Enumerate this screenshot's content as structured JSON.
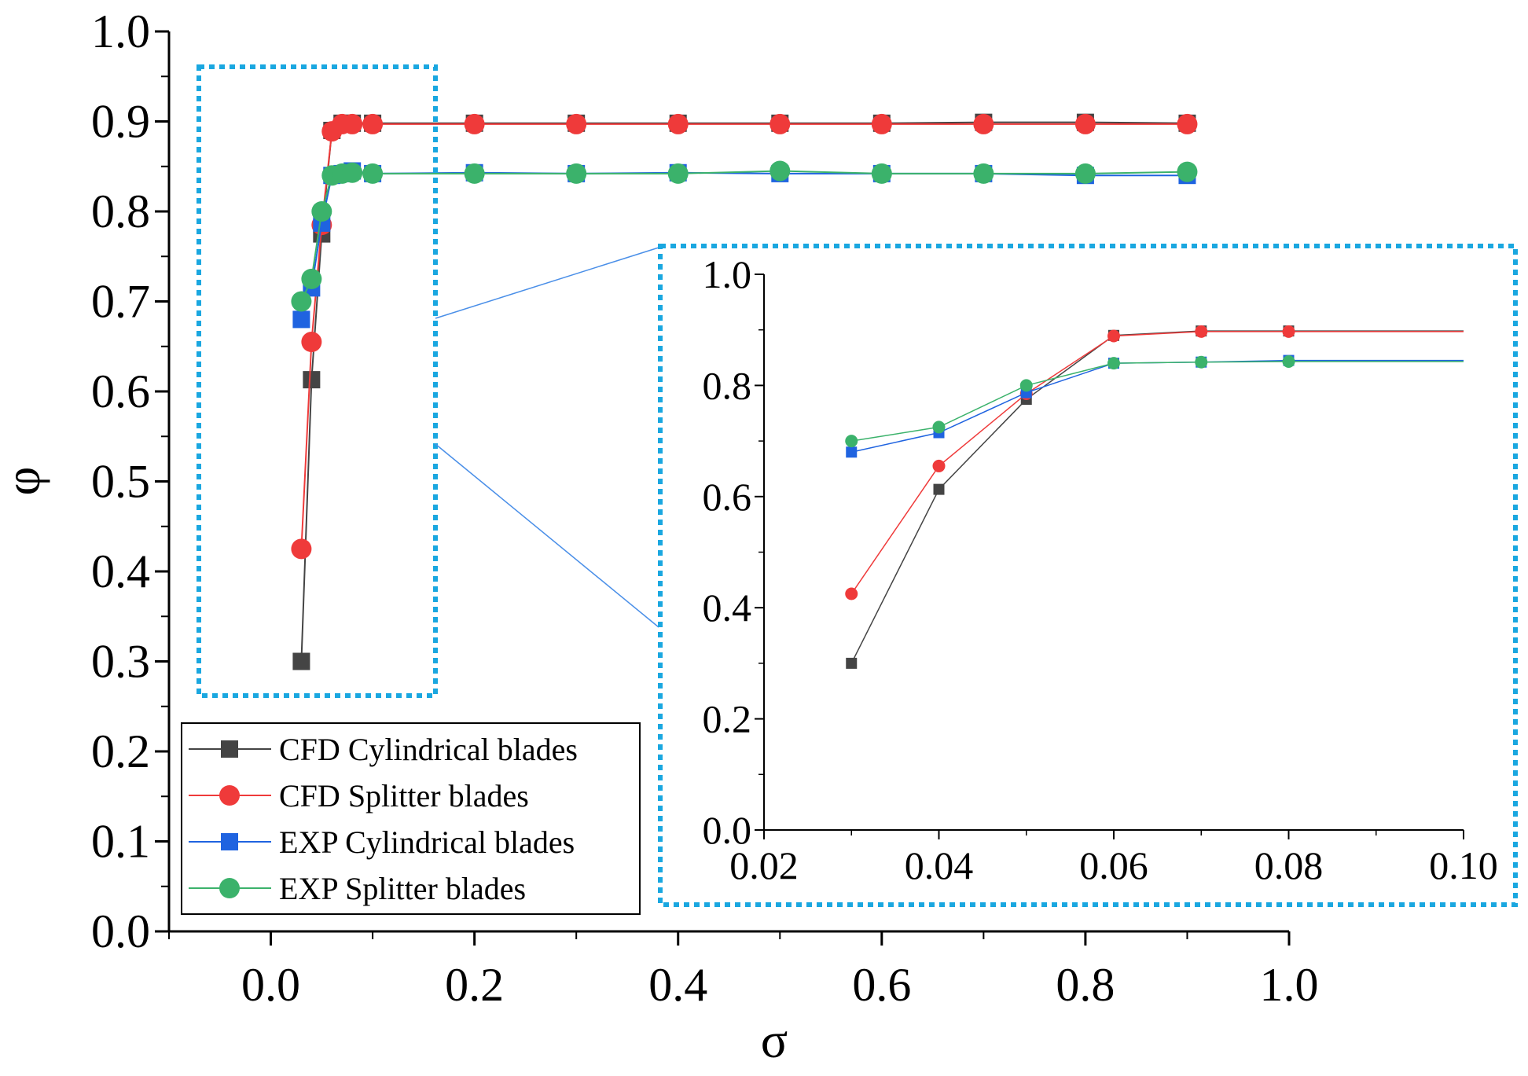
{
  "chart_data": [
    {
      "type": "line",
      "role": "main",
      "xlabel": "σ",
      "ylabel": "φ",
      "xlim": [
        -0.1,
        1.0
      ],
      "ylim": [
        0.0,
        1.0
      ],
      "xticks": [
        0.0,
        0.2,
        0.4,
        0.6,
        0.8,
        1.0
      ],
      "xtick_labels": [
        "0.0",
        "0.2",
        "0.4",
        "0.6",
        "0.8",
        "1.0"
      ],
      "yticks": [
        0.0,
        0.1,
        0.2,
        0.3,
        0.4,
        0.5,
        0.6,
        0.7,
        0.8,
        0.9,
        1.0
      ],
      "ytick_labels": [
        "0.0",
        "0.1",
        "0.2",
        "0.3",
        "0.4",
        "0.5",
        "0.6",
        "0.7",
        "0.8",
        "0.9",
        "1.0"
      ],
      "legend_position": "bottom-left",
      "series": [
        {
          "name": "CFD Cylindrical blades",
          "marker": "square",
          "color": "#444444",
          "points": [
            [
              0.03,
              0.3
            ],
            [
              0.04,
              0.613
            ],
            [
              0.05,
              0.775
            ],
            [
              0.06,
              0.89
            ],
            [
              0.07,
              0.898
            ],
            [
              0.08,
              0.898
            ],
            [
              0.1,
              0.898
            ],
            [
              0.2,
              0.898
            ],
            [
              0.3,
              0.898
            ],
            [
              0.4,
              0.898
            ],
            [
              0.5,
              0.898
            ],
            [
              0.6,
              0.898
            ],
            [
              0.7,
              0.899
            ],
            [
              0.8,
              0.899
            ],
            [
              0.9,
              0.898
            ]
          ]
        },
        {
          "name": "CFD Splitter blades",
          "marker": "circle",
          "color": "#ef3a3a",
          "points": [
            [
              0.03,
              0.425
            ],
            [
              0.04,
              0.655
            ],
            [
              0.05,
              0.785
            ],
            [
              0.06,
              0.889
            ],
            [
              0.07,
              0.897
            ],
            [
              0.08,
              0.897
            ],
            [
              0.1,
              0.897
            ],
            [
              0.2,
              0.897
            ],
            [
              0.3,
              0.897
            ],
            [
              0.4,
              0.897
            ],
            [
              0.5,
              0.897
            ],
            [
              0.6,
              0.897
            ],
            [
              0.7,
              0.897
            ],
            [
              0.8,
              0.897
            ],
            [
              0.9,
              0.897
            ]
          ]
        },
        {
          "name": "EXP Cylindrical blades",
          "marker": "square",
          "color": "#1f63e0",
          "points": [
            [
              0.03,
              0.68
            ],
            [
              0.04,
              0.715
            ],
            [
              0.05,
              0.787
            ],
            [
              0.06,
              0.84
            ],
            [
              0.07,
              0.842
            ],
            [
              0.08,
              0.845
            ],
            [
              0.1,
              0.842
            ],
            [
              0.2,
              0.843
            ],
            [
              0.3,
              0.842
            ],
            [
              0.4,
              0.843
            ],
            [
              0.5,
              0.842
            ],
            [
              0.6,
              0.842
            ],
            [
              0.7,
              0.842
            ],
            [
              0.8,
              0.84
            ],
            [
              0.9,
              0.84
            ]
          ]
        },
        {
          "name": "EXP Splitter blades",
          "marker": "circle",
          "color": "#3bb26b",
          "points": [
            [
              0.03,
              0.7
            ],
            [
              0.04,
              0.725
            ],
            [
              0.05,
              0.8
            ],
            [
              0.06,
              0.84
            ],
            [
              0.07,
              0.842
            ],
            [
              0.08,
              0.843
            ],
            [
              0.1,
              0.842
            ],
            [
              0.2,
              0.842
            ],
            [
              0.3,
              0.842
            ],
            [
              0.4,
              0.842
            ],
            [
              0.5,
              0.845
            ],
            [
              0.6,
              0.842
            ],
            [
              0.7,
              0.842
            ],
            [
              0.8,
              0.842
            ],
            [
              0.9,
              0.844
            ]
          ]
        }
      ]
    },
    {
      "type": "line",
      "role": "inset",
      "xlim": [
        0.02,
        0.1
      ],
      "ylim": [
        0.0,
        1.0
      ],
      "xticks": [
        0.02,
        0.04,
        0.06,
        0.08,
        0.1
      ],
      "xtick_labels": [
        "0.02",
        "0.04",
        "0.06",
        "0.08",
        "0.10"
      ],
      "yticks": [
        0.0,
        0.2,
        0.4,
        0.6,
        0.8,
        1.0
      ],
      "ytick_labels": [
        "0.0",
        "0.2",
        "0.4",
        "0.6",
        "0.8",
        "1.0"
      ],
      "series": [
        {
          "name": "CFD Cylindrical blades",
          "marker": "square",
          "color": "#444444",
          "points": [
            [
              0.03,
              0.3
            ],
            [
              0.04,
              0.613
            ],
            [
              0.05,
              0.775
            ],
            [
              0.06,
              0.89
            ],
            [
              0.07,
              0.898
            ],
            [
              0.08,
              0.898
            ]
          ]
        },
        {
          "name": "CFD Splitter blades",
          "marker": "circle",
          "color": "#ef3a3a",
          "points": [
            [
              0.03,
              0.425
            ],
            [
              0.04,
              0.655
            ],
            [
              0.05,
              0.785
            ],
            [
              0.06,
              0.889
            ],
            [
              0.07,
              0.897
            ],
            [
              0.08,
              0.897
            ]
          ]
        },
        {
          "name": "EXP Cylindrical blades",
          "marker": "square",
          "color": "#1f63e0",
          "points": [
            [
              0.03,
              0.68
            ],
            [
              0.04,
              0.715
            ],
            [
              0.05,
              0.787
            ],
            [
              0.06,
              0.84
            ],
            [
              0.07,
              0.842
            ],
            [
              0.08,
              0.845
            ]
          ]
        },
        {
          "name": "EXP Splitter blades",
          "marker": "circle",
          "color": "#3bb26b",
          "points": [
            [
              0.03,
              0.7
            ],
            [
              0.04,
              0.725
            ],
            [
              0.05,
              0.8
            ],
            [
              0.06,
              0.84
            ],
            [
              0.07,
              0.842
            ],
            [
              0.08,
              0.843
            ]
          ]
        }
      ]
    }
  ],
  "colors": {
    "zoom_box": "#1aa7e0",
    "connector": "#4a8fe8"
  }
}
